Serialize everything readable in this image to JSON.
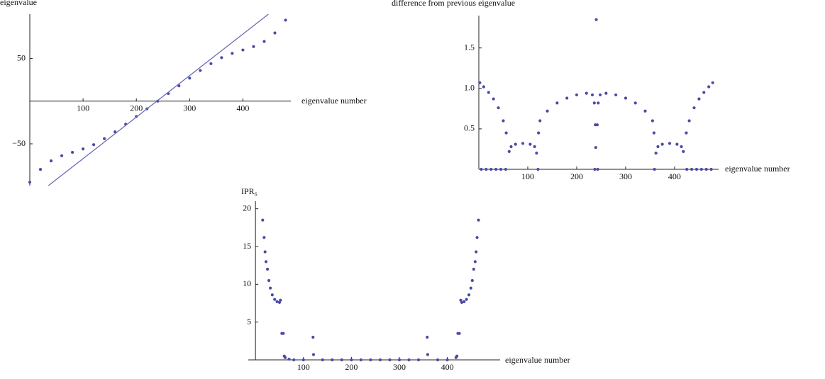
{
  "chart_data": [
    {
      "type": "scatter",
      "y_label": "eigenvalue",
      "x_label": "eigenvalue number",
      "xlim": [
        0,
        490
      ],
      "ylim": [
        -99,
        102
      ],
      "xticks": [
        100,
        200,
        300,
        400
      ],
      "yticks": [
        {
          "value": -50,
          "label": "−50"
        },
        50
      ],
      "series": [
        {
          "type": "scatter",
          "color": "#4b4ba6",
          "x": [
            0,
            20,
            40,
            60,
            80,
            100,
            120,
            140,
            160,
            180,
            200,
            220,
            240,
            260,
            280,
            300,
            320,
            340,
            360,
            380,
            400,
            420,
            440,
            460,
            480
          ],
          "values": [
            -95,
            -80,
            -70,
            -64,
            -60,
            -56,
            -51,
            -44,
            -36,
            -27,
            -18,
            -9,
            0,
            9,
            18,
            27,
            36,
            44,
            51,
            56,
            60,
            64,
            70,
            80,
            95
          ]
        },
        {
          "type": "line",
          "color": "#6a6ab8",
          "x": [
            35,
            448
          ],
          "values": [
            -99,
            102
          ]
        }
      ]
    },
    {
      "type": "scatter",
      "title": "difference from previous eigenvalue",
      "x_label": "eigenvalue number",
      "xlim": [
        0,
        490
      ],
      "ylim": [
        0,
        1.9
      ],
      "xticks": [
        100,
        200,
        300,
        400
      ],
      "yticks": [
        0.5,
        {
          "value": 1,
          "label": "1.0"
        },
        1.5
      ],
      "series": [
        {
          "type": "scatter",
          "color": "#4b4ba6",
          "x": [
            2,
            10,
            20,
            30,
            40,
            50,
            56,
            62,
            66,
            75,
            90,
            105,
            114,
            118,
            122,
            125,
            140,
            160,
            180,
            200,
            220,
            232,
            236,
            238,
            239,
            240,
            242,
            244,
            248,
            260,
            280,
            300,
            320,
            340,
            355,
            358,
            362,
            366,
            375,
            390,
            405,
            414,
            418,
            424,
            430,
            440,
            450,
            460,
            470,
            478,
            5,
            15,
            25,
            35,
            45,
            55,
            121,
            237,
            243,
            359,
            425,
            435,
            445,
            455,
            465,
            475
          ],
          "values": [
            1.07,
            1.02,
            0.95,
            0.87,
            0.76,
            0.6,
            0.45,
            0.22,
            0.28,
            0.31,
            0.32,
            0.31,
            0.28,
            0.2,
            0.45,
            0.6,
            0.72,
            0.82,
            0.88,
            0.92,
            0.94,
            0.92,
            0.82,
            0.55,
            0.27,
            1.85,
            0.55,
            0.82,
            0.92,
            0.94,
            0.92,
            0.88,
            0.82,
            0.72,
            0.6,
            0.45,
            0.2,
            0.28,
            0.31,
            0.32,
            0.31,
            0.28,
            0.22,
            0.45,
            0.6,
            0.76,
            0.87,
            0.95,
            1.02,
            1.07,
            0,
            0,
            0,
            0,
            0,
            0,
            0,
            0,
            0,
            0,
            0,
            0,
            0,
            0,
            0,
            0
          ]
        }
      ]
    },
    {
      "type": "scatter",
      "y_label": "IPR₆",
      "x_label": "eigenvalue number",
      "xlim": [
        -15,
        510
      ],
      "ylim": [
        0,
        21
      ],
      "xticks": [
        100,
        200,
        300,
        400
      ],
      "yticks": [
        5,
        10,
        15,
        20
      ],
      "series": [
        {
          "type": "scatter",
          "color": "#4b4ba6",
          "x": [
            15,
            18,
            20,
            22,
            25,
            28,
            31,
            35,
            40,
            45,
            50,
            52,
            55,
            58,
            60,
            62,
            70,
            80,
            100,
            120,
            121,
            140,
            160,
            180,
            200,
            220,
            240,
            260,
            280,
            300,
            320,
            340,
            358,
            359,
            380,
            400,
            418,
            420,
            422,
            425,
            428,
            430,
            435,
            440,
            445,
            449,
            452,
            455,
            458,
            460,
            462,
            465
          ],
          "values": [
            18.5,
            16.2,
            14.3,
            13,
            12,
            10.5,
            9.5,
            8.6,
            8,
            7.7,
            7.6,
            7.9,
            3.5,
            3.5,
            0.5,
            0.3,
            0.1,
            0,
            0,
            3,
            0.7,
            0,
            0,
            0,
            0,
            0,
            0,
            0,
            0,
            0,
            0,
            0,
            3,
            0.7,
            0,
            0,
            0.3,
            0.5,
            3.5,
            3.5,
            7.9,
            7.6,
            7.7,
            8,
            8.6,
            9.5,
            10.5,
            12,
            13,
            14.3,
            16.2,
            18.5
          ]
        }
      ]
    }
  ]
}
